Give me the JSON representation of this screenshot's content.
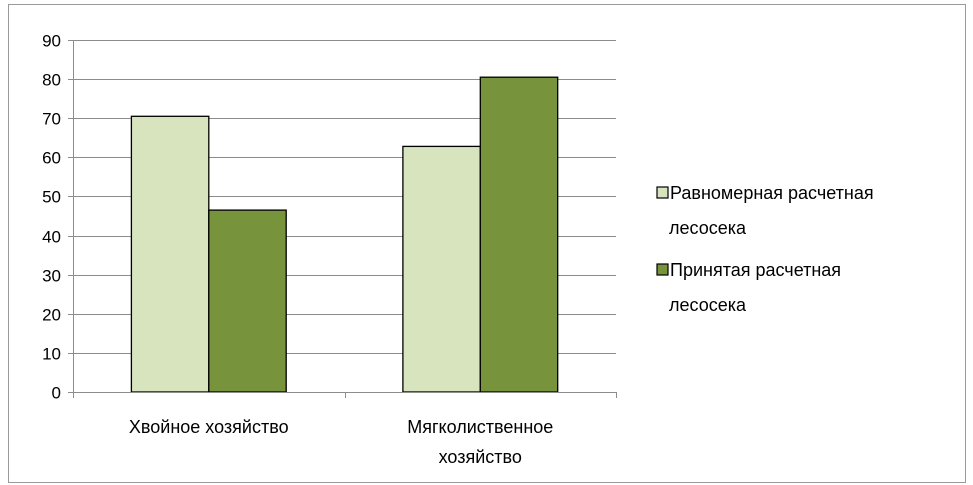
{
  "chart_data": {
    "type": "bar",
    "categories": [
      "Хвойное хозяйство",
      "Мягколиственное хозяйство"
    ],
    "category_label_lines": [
      [
        "Хвойное хозяйство"
      ],
      [
        "Мягколиственное",
        "хозяйство"
      ]
    ],
    "series": [
      {
        "name": "Равномерная  расчетная лесосека",
        "legend_lines": [
          "Равномерная  расчетная",
          "лесосека"
        ],
        "color": "#d7e4bd",
        "values": [
          70.5,
          62.8
        ]
      },
      {
        "name": "Принятая расчетная лесосека",
        "legend_lines": [
          "Принятая расчетная",
          "лесосека"
        ],
        "color": "#77933c",
        "values": [
          46.5,
          80.5
        ]
      }
    ],
    "ylim": [
      0,
      90
    ],
    "yticks": [
      0,
      10,
      20,
      30,
      40,
      50,
      60,
      70,
      80,
      90
    ],
    "grid": true,
    "legend_position": "right",
    "title": "",
    "xlabel": "",
    "ylabel": ""
  }
}
